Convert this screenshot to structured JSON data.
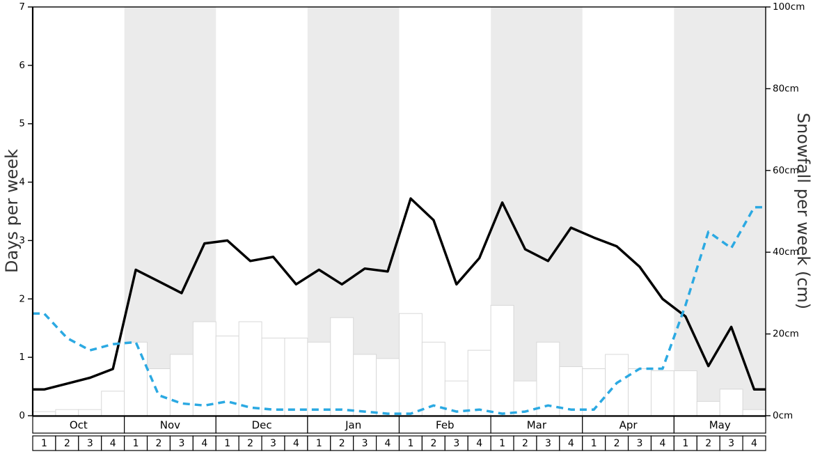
{
  "page": {
    "background": "#ffffff"
  },
  "chart_data": {
    "type": "line",
    "title": "",
    "grid": false,
    "legend": "none",
    "band_color": "#ebebeb",
    "left_axis": {
      "label": "Days per week",
      "min": 0,
      "max": 7,
      "tick_values": [
        0,
        1,
        2,
        3,
        4,
        5,
        6,
        7
      ],
      "tick_labels": [
        "0",
        "1",
        "2",
        "3",
        "4",
        "5",
        "6",
        "7"
      ]
    },
    "right_axis": {
      "label": "Snowfall per week (cm)",
      "min": 0,
      "max": 100,
      "tick_values": [
        0,
        20,
        40,
        60,
        80,
        100
      ],
      "tick_labels": [
        "0cm",
        "20cm",
        "40cm",
        "60cm",
        "80cm",
        "100cm"
      ]
    },
    "x": {
      "weeks_per_month": 4,
      "week_labels": [
        "1",
        "2",
        "3",
        "4"
      ],
      "months": [
        {
          "label": "Oct",
          "shaded": false
        },
        {
          "label": "Nov",
          "shaded": true
        },
        {
          "label": "Dec",
          "shaded": false
        },
        {
          "label": "Jan",
          "shaded": true
        },
        {
          "label": "Feb",
          "shaded": false
        },
        {
          "label": "Mar",
          "shaded": true
        },
        {
          "label": "Apr",
          "shaded": false
        },
        {
          "label": "May",
          "shaded": true
        }
      ]
    },
    "series": [
      {
        "name": "days-per-week",
        "axis": "left",
        "style": "solid",
        "color": "#000000",
        "values": [
          0.45,
          0.55,
          0.65,
          0.8,
          2.5,
          2.3,
          2.1,
          2.95,
          3.0,
          2.65,
          2.72,
          2.25,
          2.5,
          2.25,
          2.52,
          2.47,
          3.72,
          3.35,
          2.25,
          2.7,
          3.65,
          2.85,
          2.65,
          3.22,
          3.05,
          2.9,
          2.55,
          2.0,
          1.7,
          0.85,
          1.52,
          0.45
        ]
      },
      {
        "name": "snowfall-per-week-cm",
        "axis": "right",
        "style": "dashed",
        "color": "#2ba9e2",
        "values": [
          25,
          19,
          16,
          17.5,
          18,
          5,
          3,
          2.5,
          3.5,
          2,
          1.5,
          1.5,
          1.5,
          1.5,
          1,
          0.5,
          0.5,
          2.5,
          1,
          1.5,
          0.5,
          1,
          2.5,
          1.5,
          1.5,
          8,
          11.5,
          11.5,
          27,
          45,
          41,
          51
        ]
      }
    ],
    "bars": {
      "name": "weekly-snowfall-bars",
      "axis": "right",
      "fill": "#ffffff",
      "stroke": "#d8d8d8",
      "values": [
        1,
        1.5,
        1.5,
        6,
        18,
        11.5,
        15,
        23,
        19.5,
        23,
        19,
        19,
        18,
        24,
        15,
        14,
        25,
        18,
        8.5,
        16,
        27,
        8.5,
        18,
        12,
        11.5,
        15,
        11.5,
        11,
        11,
        3.5,
        6.5,
        1.5
      ]
    }
  }
}
